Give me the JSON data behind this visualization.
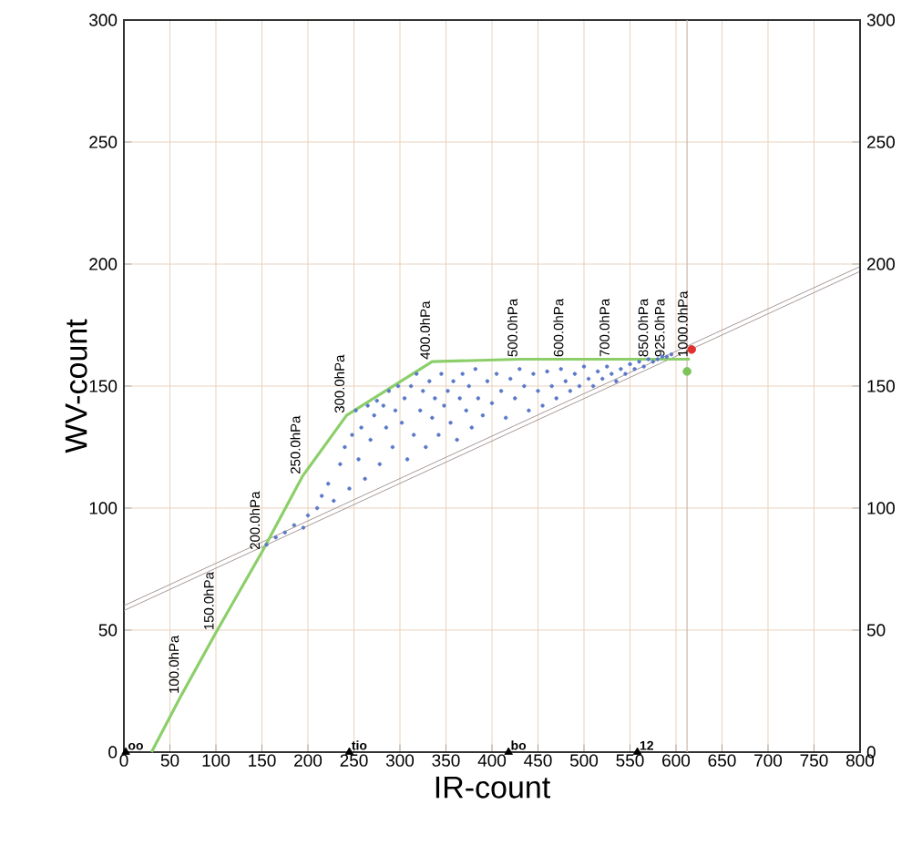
{
  "chart_data": {
    "type": "scatter",
    "xlabel": "IR-count",
    "ylabel": "WV-count",
    "xlim": [
      0,
      800
    ],
    "ylim": [
      0,
      300
    ],
    "y2lim": [
      0,
      300
    ],
    "xticks": [
      0,
      50,
      100,
      150,
      200,
      250,
      300,
      350,
      400,
      450,
      500,
      550,
      600,
      650,
      700,
      750,
      800
    ],
    "yticks": [
      0,
      50,
      100,
      150,
      200,
      250,
      300
    ],
    "y2ticks": [
      0,
      50,
      100,
      150,
      200,
      250,
      300
    ],
    "grid": true,
    "ref_lines": [
      {
        "axis": "x",
        "value": 612,
        "color": "#c8b8b0"
      }
    ],
    "series": [
      {
        "type": "line",
        "color": "#a89898",
        "x": [
          0,
          800
        ],
        "values": [
          58,
          197
        ]
      },
      {
        "type": "line",
        "color": "#a89898",
        "x": [
          0,
          800
        ],
        "values": [
          60,
          199
        ]
      },
      {
        "color": "#5a78c8",
        "marker": "circle",
        "x": [
          155,
          165,
          175,
          185,
          195,
          200,
          210,
          215,
          222,
          228,
          235,
          240,
          245,
          248,
          252,
          255,
          258,
          262,
          265,
          268,
          272,
          275,
          278,
          282,
          285,
          288,
          292,
          295,
          298,
          302,
          305,
          308,
          312,
          315,
          318,
          322,
          325,
          328,
          332,
          335,
          338,
          342,
          345,
          348,
          352,
          355,
          358,
          362,
          365,
          368,
          372,
          375,
          378,
          382,
          385,
          390,
          395,
          400,
          405,
          410,
          415,
          420,
          425,
          430,
          435,
          440,
          445,
          450,
          455,
          460,
          465,
          470,
          475,
          480,
          485,
          490,
          495,
          500,
          505,
          510,
          515,
          520,
          525,
          530,
          535,
          540,
          545,
          550,
          555,
          560,
          565,
          570,
          575,
          580,
          585,
          590,
          595
        ],
        "values": [
          85,
          88,
          90,
          93,
          92,
          97,
          100,
          105,
          110,
          103,
          118,
          125,
          108,
          130,
          140,
          120,
          133,
          112,
          142,
          128,
          138,
          144,
          118,
          142,
          133,
          148,
          125,
          140,
          150,
          135,
          145,
          120,
          150,
          130,
          155,
          140,
          148,
          125,
          152,
          137,
          145,
          130,
          155,
          142,
          148,
          135,
          152,
          128,
          145,
          155,
          140,
          150,
          133,
          157,
          145,
          138,
          152,
          143,
          155,
          148,
          137,
          153,
          145,
          157,
          150,
          140,
          155,
          148,
          142,
          156,
          150,
          145,
          157,
          152,
          148,
          155,
          150,
          158,
          153,
          150,
          156,
          153,
          158,
          155,
          152,
          157,
          155,
          159,
          157,
          160,
          158,
          161,
          160,
          161,
          162,
          162,
          163
        ]
      },
      {
        "type": "line",
        "color": "#8ccf6a",
        "x": [
          30,
          62,
          100,
          150,
          194,
          242,
          335,
          430,
          480,
          530,
          572,
          590,
          615
        ],
        "values": [
          0,
          23,
          49,
          82,
          113,
          138,
          160,
          161,
          161,
          161,
          161,
          161,
          161
        ]
      },
      {
        "color": "#7cc35a",
        "marker": "circle",
        "x": [
          612
        ],
        "values": [
          156
        ]
      },
      {
        "color": "#e03030",
        "marker": "circle",
        "x": [
          617
        ],
        "values": [
          165
        ]
      },
      {
        "color": "#000000",
        "marker": "triangle",
        "x": [
          2,
          245,
          418,
          558
        ],
        "values": [
          0,
          0,
          0,
          0
        ]
      }
    ],
    "annotations": [
      {
        "text": "100.0hPa",
        "x": 62,
        "y": 23
      },
      {
        "text": "150.0hPa",
        "x": 100,
        "y": 49
      },
      {
        "text": "200.0hPa",
        "x": 150,
        "y": 82
      },
      {
        "text": "250.0hPa",
        "x": 194,
        "y": 113
      },
      {
        "text": "300.0hPa",
        "x": 242,
        "y": 138
      },
      {
        "text": "400.0hPa",
        "x": 335,
        "y": 160
      },
      {
        "text": "500.0hPa",
        "x": 430,
        "y": 161
      },
      {
        "text": "600.0hPa",
        "x": 480,
        "y": 161
      },
      {
        "text": "700.0hPa",
        "x": 530,
        "y": 161
      },
      {
        "text": "850.0hPa",
        "x": 572,
        "y": 161
      },
      {
        "text": "925.0hPa",
        "x": 590,
        "y": 161
      },
      {
        "text": "1000.0hPa",
        "x": 615,
        "y": 161
      },
      {
        "text": "oo",
        "x": 2,
        "y": 0
      },
      {
        "text": "tio",
        "x": 245,
        "y": 0
      },
      {
        "text": "bo",
        "x": 418,
        "y": 0
      },
      {
        "text": "12",
        "x": 558,
        "y": 0
      }
    ]
  }
}
